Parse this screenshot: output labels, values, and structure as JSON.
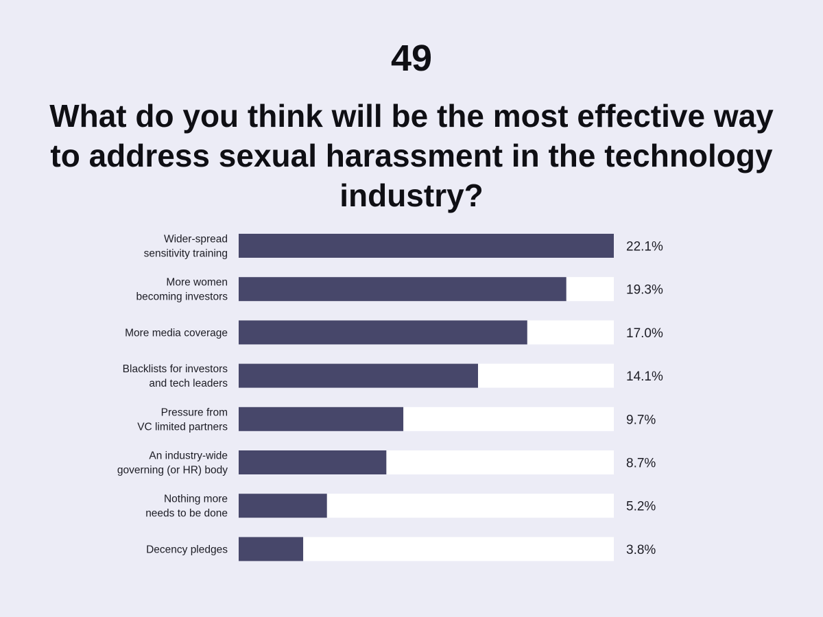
{
  "header": {
    "number": "49",
    "title": "What do you think will be the most effective way to address sexual harassment in the technology industry?"
  },
  "colors": {
    "background": "#ececf6",
    "bar_fill": "#47476a",
    "bar_track": "#ffffff"
  },
  "chart_data": {
    "type": "bar",
    "orientation": "horizontal",
    "title": "What do you think will be the most effective way to address sexual harassment in the technology industry?",
    "categories": [
      [
        "Wider-spread",
        "sensitivity training"
      ],
      [
        "More women",
        "becoming investors"
      ],
      [
        "More media coverage"
      ],
      [
        "Blacklists for investors",
        "and tech leaders"
      ],
      [
        "Pressure from",
        "VC limited partners"
      ],
      [
        "An industry-wide",
        "governing (or HR) body"
      ],
      [
        "Nothing more",
        "needs to be done"
      ],
      [
        "Decency pledges"
      ]
    ],
    "values": [
      22.1,
      19.3,
      17.0,
      14.1,
      9.7,
      8.7,
      5.2,
      3.8
    ],
    "value_labels": [
      "22.1%",
      "19.3%",
      "17.0%",
      "14.1%",
      "9.7%",
      "8.7%",
      "5.2%",
      "3.8%"
    ],
    "xlim": [
      0,
      22.1
    ],
    "unit": "%",
    "grid": false,
    "legend": "none"
  }
}
